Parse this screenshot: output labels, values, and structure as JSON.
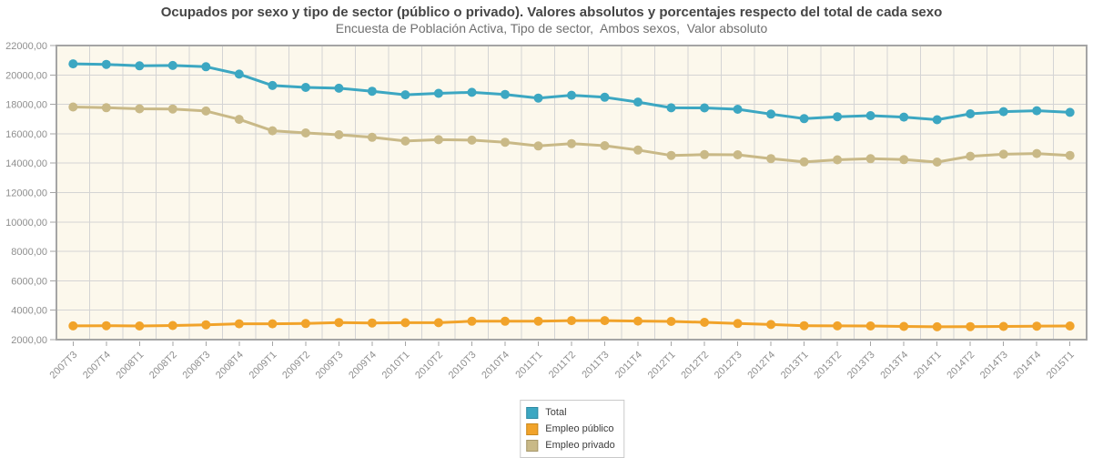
{
  "header": {
    "title": "Ocupados por sexo y tipo de sector (público o privado). Valores absolutos y porcentajes respecto del total de cada sexo",
    "subtitle": "Encuesta de Población Activa, Tipo de sector,  Ambos sexos,  Valor absoluto"
  },
  "colors": {
    "plot_background": "#fcf8ec",
    "plot_border": "#a5a5a5",
    "gridline": "#d4d4d4",
    "tick": "#a5a5a5",
    "axis_label": "#8f8f8f",
    "title_text": "#454545",
    "subtitle_text": "#6f6f6f",
    "legend_text": "#3c3c3c",
    "legend_border": "#c9c9c9"
  },
  "chart_data": {
    "type": "line",
    "title": "Ocupados por sexo y tipo de sector (público o privado). Valores absolutos y porcentajes respecto del total de cada sexo",
    "subtitle": "Encuesta de Población Activa, Tipo de sector,  Ambos sexos,  Valor absoluto",
    "xlabel": "",
    "ylabel": "",
    "ylim": [
      2000,
      22000
    ],
    "ytick_step": 2000,
    "ytick_labels": [
      "2000,00",
      "4000,00",
      "6000,00",
      "8000,00",
      "10000,00",
      "12000,00",
      "14000,00",
      "16000,00",
      "18000,00",
      "20000,00",
      "22000,00"
    ],
    "grid": true,
    "legend_position": "bottom-center",
    "marker": "circle",
    "categories": [
      "2007T3",
      "2007T4",
      "2008T1",
      "2008T2",
      "2008T3",
      "2008T4",
      "2009T1",
      "2009T2",
      "2009T3",
      "2009T4",
      "2010T1",
      "2010T2",
      "2010T3",
      "2010T4",
      "2011T1",
      "2011T2",
      "2011T3",
      "2011T4",
      "2012T1",
      "2012T2",
      "2012T3",
      "2012T4",
      "2013T1",
      "2013T2",
      "2013T3",
      "2013T4",
      "2014T1",
      "2014T2",
      "2014T3",
      "2014T4",
      "2015T1"
    ],
    "series": [
      {
        "name": "Total",
        "color": "#3ca7c2",
        "swatch_border": "#2f8ba3",
        "values": [
          20753.4,
          20717.9,
          20620.0,
          20646.9,
          20556.4,
          20055.3,
          19284.4,
          19154.2,
          19098.4,
          18890.4,
          18652.9,
          18751.1,
          18819.0,
          18674.9,
          18426.2,
          18622.0,
          18484.5,
          18153.0,
          17765.1,
          17758.5,
          17667.7,
          17339.4,
          17030.2,
          17160.6,
          17230.0,
          17135.2,
          16950.6,
          17353.0,
          17504.0,
          17569.1,
          17454.8
        ]
      },
      {
        "name": "Empleo público",
        "color": "#f1a32a",
        "swatch_border": "#c9891e",
        "values": [
          2935.8,
          2947.9,
          2925.8,
          2961.0,
          3009.0,
          3076.3,
          3077.8,
          3097.6,
          3163.7,
          3130.7,
          3150.2,
          3154.7,
          3252.2,
          3250.8,
          3255.0,
          3293.6,
          3294.4,
          3262.3,
          3236.0,
          3177.0,
          3098.0,
          3029.0,
          2945.8,
          2932.5,
          2927.0,
          2896.0,
          2874.0,
          2884.6,
          2895.0,
          2914.5,
          2925.9
        ]
      },
      {
        "name": "Empleo privado",
        "color": "#c9b987",
        "swatch_border": "#a6976b",
        "values": [
          17817.6,
          17770.0,
          17694.2,
          17685.9,
          17547.4,
          16979.0,
          16206.6,
          16056.6,
          15934.7,
          15759.7,
          15502.7,
          15596.4,
          15566.8,
          15424.1,
          15171.2,
          15328.4,
          15190.1,
          14890.7,
          14529.1,
          14581.5,
          14569.7,
          14310.4,
          14084.4,
          14228.1,
          14303.0,
          14239.2,
          14076.6,
          14468.4,
          14609.0,
          14654.6,
          14528.9
        ]
      }
    ]
  }
}
